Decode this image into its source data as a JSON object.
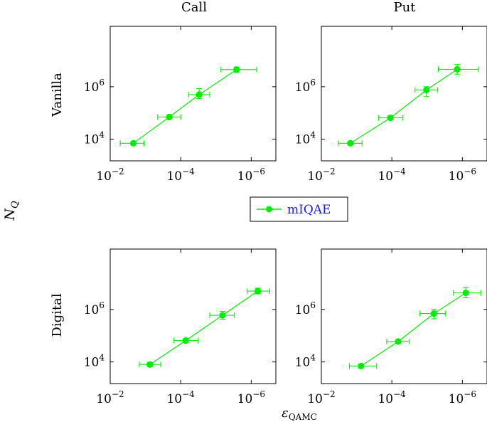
{
  "figure": {
    "ylabel_main": "N",
    "ylabel_sub": "Q",
    "xlabel_main": "ε",
    "xlabel_sub": "QAMC",
    "col_titles": [
      "Call",
      "Put"
    ],
    "row_titles": [
      "Vanilla",
      "Digital"
    ],
    "series_color": "#00ee00",
    "legend_text_color": "#1a1aee"
  },
  "legend": {
    "entries": [
      "mIQAE"
    ]
  },
  "chart_data": [
    {
      "type": "scatter",
      "title": "Call",
      "row": "Vanilla",
      "xlabel": "",
      "ylabel": "",
      "x_scale": "log",
      "y_scale": "log",
      "x_reversed": true,
      "xlim": [
        0.01,
        2e-07
      ],
      "ylim": [
        1500,
        200000000
      ],
      "x_ticks": [
        0.01,
        0.0001,
        1e-06
      ],
      "y_ticks": [
        10000,
        1000000
      ],
      "x_tick_labels": [
        "10^-2",
        "10^-4",
        "10^-6"
      ],
      "y_tick_labels": [
        "10^4",
        "10^6"
      ],
      "series": [
        {
          "name": "mIQAE",
          "points": [
            {
              "x": 0.0022,
              "y": 7000,
              "xerr_low": 0.0011,
              "xerr_high": 0.0052,
              "yerr_low": 6000,
              "yerr_high": 8200
            },
            {
              "x": 0.00021,
              "y": 70000,
              "xerr_low": 0.0001,
              "xerr_high": 0.00045,
              "yerr_low": 60000,
              "yerr_high": 82000
            },
            {
              "x": 3e-05,
              "y": 500000,
              "xerr_low": 1.5e-05,
              "xerr_high": 6e-05,
              "yerr_low": 350000,
              "yerr_high": 850000
            },
            {
              "x": 2.6e-06,
              "y": 4500000,
              "xerr_low": 7e-07,
              "xerr_high": 7.2e-06,
              "yerr_low": 3500000,
              "yerr_high": 5600000
            }
          ]
        }
      ]
    },
    {
      "type": "scatter",
      "title": "Put",
      "row": "Vanilla",
      "xlabel": "",
      "ylabel": "",
      "x_scale": "log",
      "y_scale": "log",
      "x_reversed": true,
      "xlim": [
        0.01,
        2e-07
      ],
      "ylim": [
        1500,
        200000000
      ],
      "x_ticks": [
        0.01,
        0.0001,
        1e-06
      ],
      "y_ticks": [
        10000,
        1000000
      ],
      "x_tick_labels": [
        "10^-2",
        "10^-4",
        "10^-6"
      ],
      "y_tick_labels": [
        "10^4",
        "10^6"
      ],
      "series": [
        {
          "name": "mIQAE",
          "points": [
            {
              "x": 0.0015,
              "y": 7000,
              "xerr_low": 0.0007,
              "xerr_high": 0.0033,
              "yerr_low": 6000,
              "yerr_high": 8200
            },
            {
              "x": 0.00011,
              "y": 65000,
              "xerr_low": 5e-05,
              "xerr_high": 0.00024,
              "yerr_low": 55000,
              "yerr_high": 76000
            },
            {
              "x": 1.05e-05,
              "y": 750000,
              "xerr_low": 5e-06,
              "xerr_high": 2.2e-05,
              "yerr_low": 420000,
              "yerr_high": 1000000
            },
            {
              "x": 1.4e-06,
              "y": 4600000,
              "xerr_low": 3.5e-07,
              "xerr_high": 4.8e-06,
              "yerr_low": 3000000,
              "yerr_high": 7000000
            }
          ]
        }
      ]
    },
    {
      "type": "scatter",
      "title": "",
      "row": "Digital",
      "xlabel": "",
      "ylabel": "",
      "x_scale": "log",
      "y_scale": "log",
      "x_reversed": true,
      "xlim": [
        0.01,
        2e-07
      ],
      "ylim": [
        1500,
        200000000
      ],
      "x_ticks": [
        0.01,
        0.0001,
        1e-06
      ],
      "y_ticks": [
        10000,
        1000000
      ],
      "x_tick_labels": [
        "10^-2",
        "10^-4",
        "10^-6"
      ],
      "y_tick_labels": [
        "10^4",
        "10^6"
      ],
      "series": [
        {
          "name": "mIQAE",
          "points": [
            {
              "x": 0.00075,
              "y": 8000,
              "xerr_low": 0.00037,
              "xerr_high": 0.0015,
              "yerr_low": 6800,
              "yerr_high": 9500
            },
            {
              "x": 7.2e-05,
              "y": 65000,
              "xerr_low": 3.2e-05,
              "xerr_high": 0.000155,
              "yerr_low": 56000,
              "yerr_high": 76000
            },
            {
              "x": 6.5e-06,
              "y": 600000,
              "xerr_low": 3e-06,
              "xerr_high": 1.5e-05,
              "yerr_low": 420000,
              "yerr_high": 850000
            },
            {
              "x": 6.5e-07,
              "y": 5000000,
              "xerr_low": 3e-07,
              "xerr_high": 1.3e-06,
              "yerr_low": 3900000,
              "yerr_high": 6500000
            }
          ]
        }
      ]
    },
    {
      "type": "scatter",
      "title": "",
      "row": "Digital",
      "xlabel": "",
      "ylabel": "",
      "x_scale": "log",
      "y_scale": "log",
      "x_reversed": true,
      "xlim": [
        0.01,
        2e-07
      ],
      "ylim": [
        1500,
        200000000
      ],
      "x_ticks": [
        0.01,
        0.0001,
        1e-06
      ],
      "y_ticks": [
        10000,
        1000000
      ],
      "x_tick_labels": [
        "10^-2",
        "10^-4",
        "10^-6"
      ],
      "y_tick_labels": [
        "10^4",
        "10^6"
      ],
      "series": [
        {
          "name": "mIQAE",
          "points": [
            {
              "x": 0.00075,
              "y": 7000,
              "xerr_low": 0.00027,
              "xerr_high": 0.0016,
              "yerr_low": 6000,
              "yerr_high": 8200
            },
            {
              "x": 6.6e-05,
              "y": 60000,
              "xerr_low": 3.2e-05,
              "xerr_high": 0.00014,
              "yerr_low": 52000,
              "yerr_high": 70000
            },
            {
              "x": 6.4e-06,
              "y": 700000,
              "xerr_low": 3e-06,
              "xerr_high": 1.6e-05,
              "yerr_low": 440000,
              "yerr_high": 1000000
            },
            {
              "x": 8e-07,
              "y": 4300000,
              "xerr_low": 3e-07,
              "xerr_high": 1.8e-06,
              "yerr_low": 2800000,
              "yerr_high": 6800000
            }
          ]
        }
      ]
    }
  ]
}
